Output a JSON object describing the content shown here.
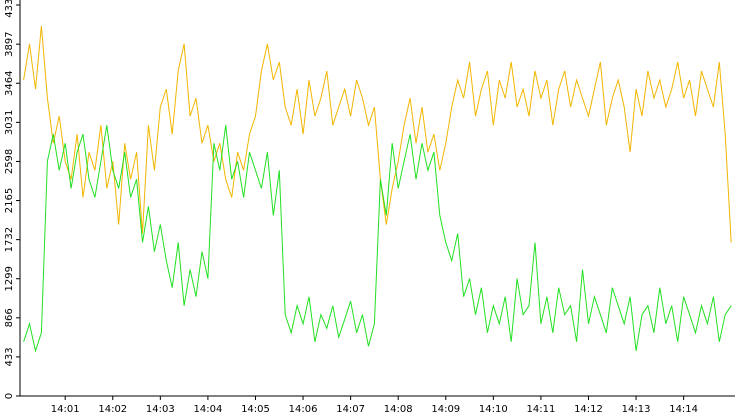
{
  "chart_data": {
    "type": "line",
    "x": [
      0.125,
      0.25,
      0.375,
      0.5,
      0.625,
      0.75,
      0.875,
      1,
      1.125,
      1.25,
      1.375,
      1.5,
      1.625,
      1.75,
      1.875,
      2,
      2.125,
      2.25,
      2.375,
      2.5,
      2.625,
      2.75,
      2.875,
      3,
      3.125,
      3.25,
      3.375,
      3.5,
      3.625,
      3.75,
      3.875,
      4,
      4.125,
      4.25,
      4.375,
      4.5,
      4.625,
      4.75,
      4.875,
      5,
      5.125,
      5.25,
      5.375,
      5.5,
      5.625,
      5.75,
      5.875,
      6,
      6.125,
      6.25,
      6.375,
      6.5,
      6.625,
      6.75,
      6.875,
      7,
      7.125,
      7.25,
      7.375,
      7.5,
      7.625,
      7.75,
      7.875,
      8,
      8.125,
      8.25,
      8.375,
      8.5,
      8.625,
      8.75,
      8.875,
      9,
      9.125,
      9.25,
      9.375,
      9.5,
      9.625,
      9.75,
      9.875,
      10,
      10.125,
      10.25,
      10.375,
      10.5,
      10.625,
      10.75,
      10.875,
      11,
      11.125,
      11.25,
      11.375,
      11.5,
      11.625,
      11.75,
      11.875,
      12,
      12.125,
      12.25,
      12.375,
      12.5,
      12.625,
      12.75,
      12.875,
      13,
      13.125,
      13.25,
      13.375,
      13.5,
      13.625,
      13.75,
      13.875,
      14,
      14.125,
      14.25,
      14.375,
      14.5,
      14.625,
      14.75,
      14.875,
      15
    ],
    "series": [
      {
        "color": "#f2b600",
        "values": [
          3500,
          3900,
          3400,
          4100,
          3300,
          2800,
          3100,
          2600,
          2400,
          2900,
          2200,
          2700,
          2500,
          3000,
          2300,
          2600,
          1900,
          2800,
          2400,
          2700,
          1800,
          3000,
          2500,
          3200,
          3400,
          2900,
          3600,
          3900,
          3100,
          3300,
          2800,
          3000,
          2600,
          2800,
          2400,
          2200,
          2700,
          2500,
          2900,
          3100,
          3600,
          3900,
          3500,
          3700,
          3200,
          3000,
          3400,
          2900,
          3500,
          3100,
          3300,
          3600,
          3000,
          3200,
          3400,
          3100,
          3500,
          3300,
          3000,
          3200,
          2400,
          1900,
          2300,
          2600,
          3000,
          3300,
          2800,
          3200,
          2700,
          2900,
          2500,
          2800,
          3200,
          3500,
          3300,
          3700,
          3100,
          3400,
          3600,
          3000,
          3500,
          3300,
          3700,
          3200,
          3400,
          3100,
          3600,
          3300,
          3500,
          3000,
          3400,
          3600,
          3200,
          3500,
          3300,
          3100,
          3400,
          3700,
          3000,
          3300,
          3500,
          3200,
          2700,
          3400,
          3100,
          3600,
          3300,
          3500,
          3200,
          3400,
          3700,
          3300,
          3500,
          3100,
          3600,
          3400,
          3200,
          3700,
          2900,
          1700
        ]
      },
      {
        "color": "#22e022",
        "values": [
          600,
          800,
          500,
          700,
          2600,
          2900,
          2500,
          2800,
          2300,
          2700,
          2900,
          2400,
          2200,
          2600,
          3000,
          2500,
          2300,
          2700,
          2200,
          2400,
          1700,
          2100,
          1600,
          1900,
          1500,
          1200,
          1700,
          1000,
          1400,
          1100,
          1600,
          1300,
          2800,
          2500,
          3000,
          2400,
          2600,
          2200,
          2700,
          2500,
          2300,
          2700,
          2000,
          2500,
          900,
          700,
          1000,
          800,
          1100,
          600,
          900,
          750,
          1000,
          650,
          850,
          1050,
          700,
          900,
          550,
          800,
          2400,
          2000,
          2800,
          2300,
          2600,
          2900,
          2400,
          2800,
          2500,
          2700,
          2000,
          1700,
          1500,
          1800,
          1100,
          1300,
          900,
          1200,
          700,
          1000,
          800,
          1100,
          600,
          1300,
          900,
          1000,
          1700,
          800,
          1100,
          700,
          1200,
          900,
          1000,
          600,
          1400,
          800,
          1100,
          900,
          700,
          1200,
          1000,
          800,
          1100,
          500,
          900,
          1000,
          700,
          1200,
          800,
          1000,
          600,
          1100,
          900,
          700,
          1000,
          800,
          1100,
          600,
          900,
          1000
        ]
      }
    ],
    "xlim": [
      0.05,
      15.08
    ],
    "xticks": [
      {
        "value": 1,
        "label": "14:01"
      },
      {
        "value": 2,
        "label": "14:02"
      },
      {
        "value": 3,
        "label": "14:03"
      },
      {
        "value": 4,
        "label": "14:04"
      },
      {
        "value": 5,
        "label": "14:05"
      },
      {
        "value": 6,
        "label": "14:06"
      },
      {
        "value": 7,
        "label": "14:07"
      },
      {
        "value": 8,
        "label": "14:08"
      },
      {
        "value": 9,
        "label": "14:09"
      },
      {
        "value": 10,
        "label": "14:10"
      },
      {
        "value": 11,
        "label": "14:11"
      },
      {
        "value": 12,
        "label": "14:12"
      },
      {
        "value": 13,
        "label": "14:13"
      },
      {
        "value": 14,
        "label": "14:14"
      }
    ],
    "ylim": [
      0,
      4331
    ],
    "yticks": [
      0,
      433,
      866,
      1299,
      1732,
      2165,
      2598,
      3031,
      3464,
      3897,
      4331
    ]
  }
}
